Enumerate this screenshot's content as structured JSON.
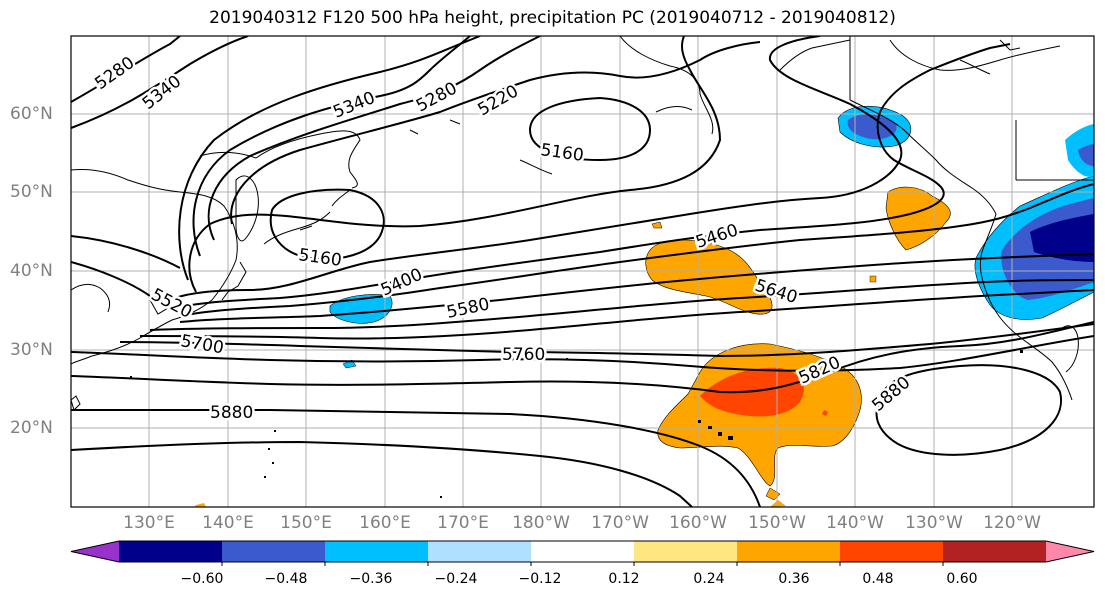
{
  "title": "2019040312 F120 500 hPa height, precipitation PC (2019040712 - 2019040812)",
  "lat_labels": [
    "60°N",
    "50°N",
    "40°N",
    "30°N",
    "20°N"
  ],
  "lon_labels": [
    "130°E",
    "140°E",
    "150°E",
    "160°E",
    "170°E",
    "180°W",
    "170°W",
    "160°W",
    "150°W",
    "140°W",
    "130°W",
    "120°W"
  ],
  "contour_labels": [
    "5280",
    "5340",
    "5340",
    "5280",
    "5220",
    "5160",
    "5160",
    "5460",
    "5400",
    "5520",
    "5580",
    "5640",
    "5700",
    "5760",
    "5820",
    "5880",
    "5880"
  ],
  "colorbar": {
    "ticks": [
      "−0.60",
      "−0.48",
      "−0.36",
      "−0.24",
      "−0.12",
      "0.12",
      "0.24",
      "0.36",
      "0.48",
      "0.60"
    ],
    "colors": [
      "#9932cc",
      "#00008b",
      "#3a5acd",
      "#00bfff",
      "#b0e0ff",
      "#ffffff",
      "#ffe680",
      "#ffa500",
      "#ff4500",
      "#b22222",
      "#ff88aa"
    ]
  }
}
